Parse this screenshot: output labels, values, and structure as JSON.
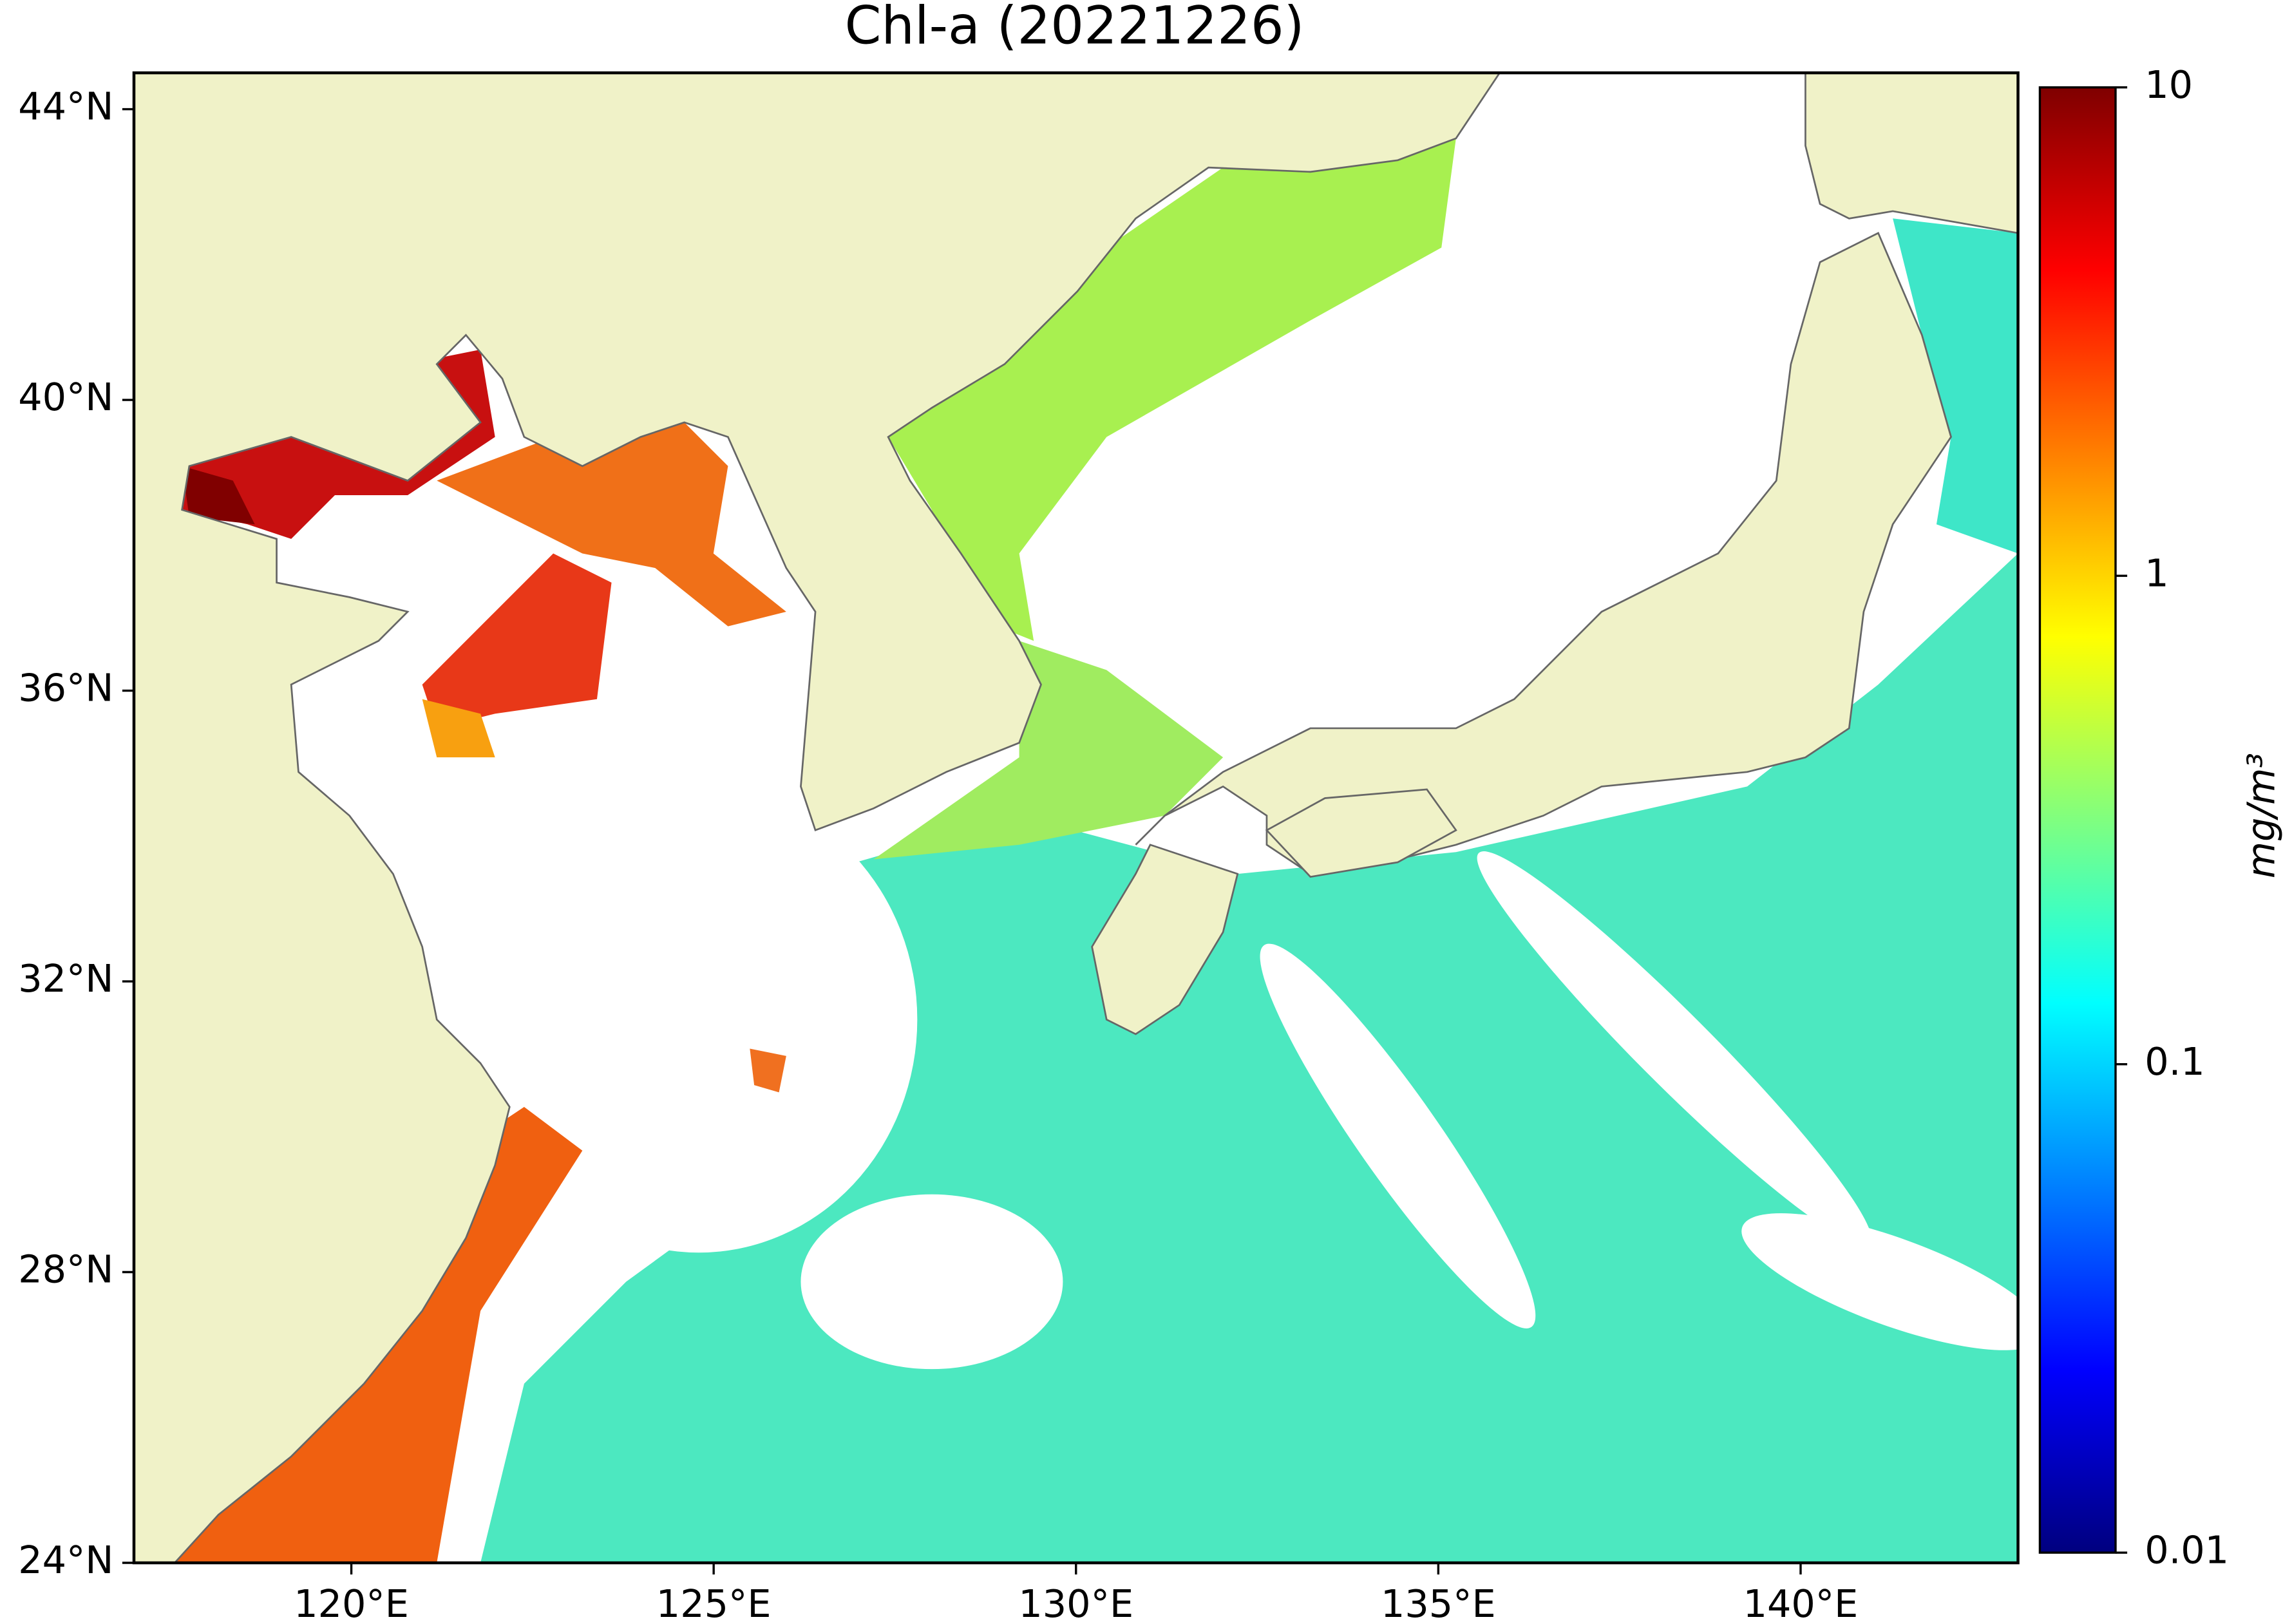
{
  "chart_data": {
    "type": "map",
    "title": "Chl-a (20221226)",
    "xlim": [
      117,
      143
    ],
    "ylim": [
      24,
      44.5
    ],
    "xticks": [
      {
        "value": 120,
        "label": "120°E"
      },
      {
        "value": 125,
        "label": "125°E"
      },
      {
        "value": 130,
        "label": "130°E"
      },
      {
        "value": 135,
        "label": "135°E"
      },
      {
        "value": 140,
        "label": "140°E"
      }
    ],
    "yticks": [
      {
        "value": 24,
        "label": "24°N"
      },
      {
        "value": 28,
        "label": "28°N"
      },
      {
        "value": 32,
        "label": "32°N"
      },
      {
        "value": 36,
        "label": "36°N"
      },
      {
        "value": 40,
        "label": "40°N"
      },
      {
        "value": 44,
        "label": "44°N"
      }
    ],
    "colorbar": {
      "label": "mg/m³",
      "colormap": "jet",
      "log_scale": true,
      "clim": [
        0.01,
        10
      ],
      "ticks": [
        0.01,
        0.1,
        1,
        10
      ]
    }
  }
}
